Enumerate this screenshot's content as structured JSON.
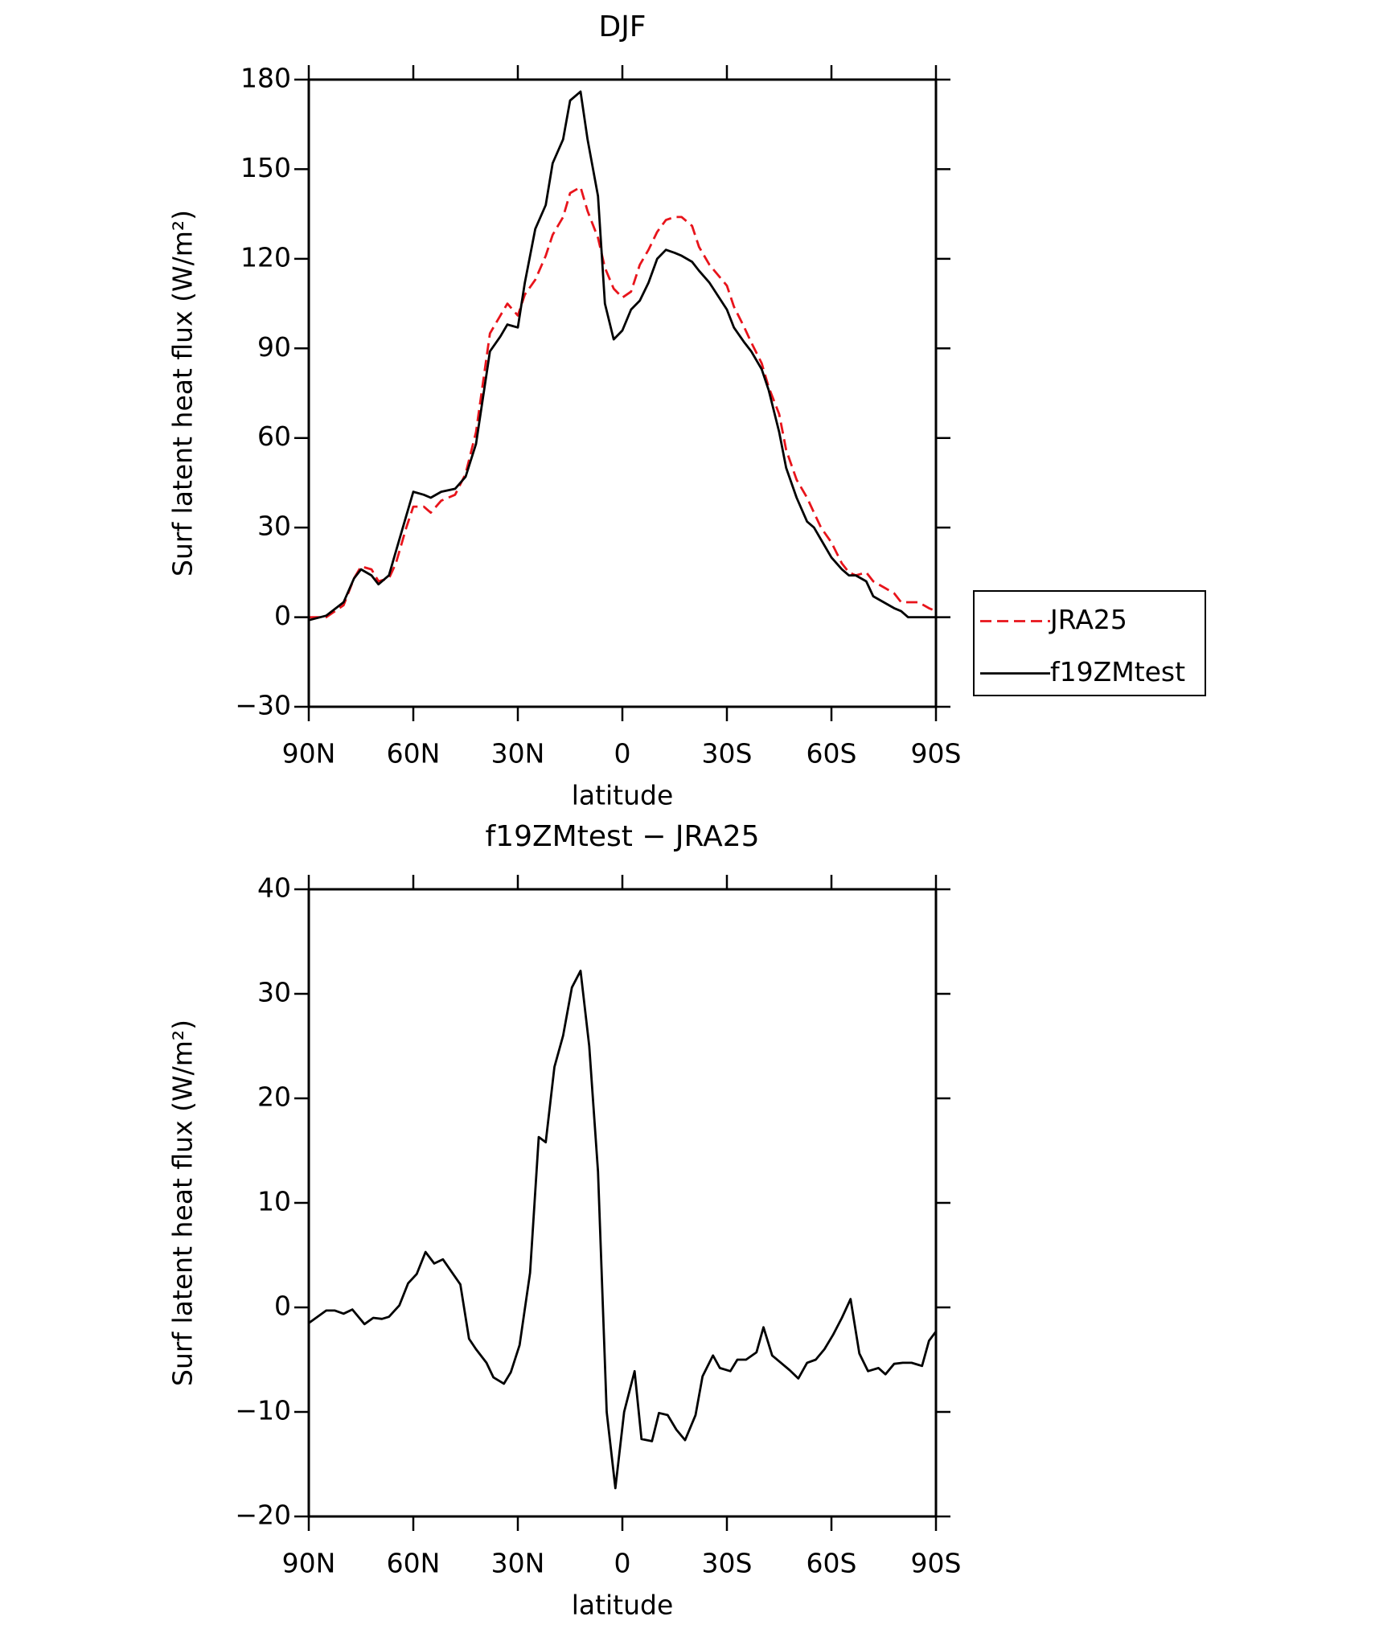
{
  "chart_data": [
    {
      "type": "line",
      "title": "DJF",
      "xlabel": "latitude",
      "ylabel": "Surf latent heat flux (W/m²)",
      "x": [
        90,
        85,
        80,
        77,
        75,
        72,
        70,
        67,
        65,
        62,
        60,
        57,
        55,
        52,
        48,
        45,
        42,
        38,
        35,
        33,
        30,
        28,
        25,
        22,
        20,
        17,
        15,
        12,
        10,
        7,
        5,
        2.5,
        0,
        -2.5,
        -5,
        -7.5,
        -10,
        -12.5,
        -15,
        -17,
        -20,
        -22,
        -25,
        -30,
        -32,
        -35,
        -37,
        -40,
        -42,
        -45,
        -47,
        -50,
        -53,
        -55,
        -57,
        -60,
        -63,
        -65,
        -67,
        -70,
        -72,
        -75,
        -78,
        -80,
        -82,
        -85,
        -88,
        -90
      ],
      "series": [
        {
          "name": "JRA25",
          "color": "#e8141b",
          "dash": true,
          "values": [
            0,
            0,
            4,
            13,
            17,
            16,
            12,
            13,
            18,
            30,
            37,
            37,
            35,
            39,
            41,
            48,
            62,
            95,
            101,
            105,
            101,
            108,
            113,
            121,
            128,
            134,
            142,
            144,
            136,
            127,
            117,
            110,
            107,
            109,
            118,
            123,
            129,
            133,
            134,
            134,
            131,
            124,
            118,
            111,
            104,
            97,
            92,
            85,
            77,
            68,
            56,
            46,
            40,
            35,
            30,
            25,
            18,
            15,
            14,
            15,
            12,
            10,
            8,
            5,
            5,
            5,
            3,
            2
          ]
        },
        {
          "name": "f19ZMtest",
          "color": "#000000",
          "dash": false,
          "values": [
            -1,
            0.5,
            5,
            13,
            16,
            14,
            11,
            14,
            22,
            34,
            42,
            41,
            40,
            42,
            43,
            47,
            58,
            89,
            94,
            98,
            97,
            112,
            130,
            138,
            152,
            160,
            173,
            176,
            160,
            141,
            105,
            93,
            96,
            103,
            106,
            112,
            120,
            123,
            122,
            121,
            119,
            116,
            112,
            103,
            97,
            92,
            89,
            83,
            76,
            62,
            50,
            40,
            32,
            30,
            26,
            20,
            16,
            14,
            14,
            12,
            7,
            5,
            3,
            2,
            0,
            0,
            0,
            0
          ]
        }
      ],
      "xlim": [
        90,
        -90
      ],
      "xticks": [
        {
          "value": 90,
          "label": "90N"
        },
        {
          "value": 60,
          "label": "60N"
        },
        {
          "value": 30,
          "label": "30N"
        },
        0,
        {
          "value": -30,
          "label": "30S"
        },
        {
          "value": -60,
          "label": "60S"
        },
        {
          "value": -90,
          "label": "90S"
        }
      ],
      "ylim": [
        -30,
        180
      ],
      "yticks": [
        {
          "value": -30,
          "label": "−30"
        },
        0,
        30,
        60,
        90,
        120,
        150,
        180
      ],
      "legend": "right"
    },
    {
      "type": "line",
      "title": "f19ZMtest − JRA25",
      "xlabel": "latitude",
      "ylabel": "Surf latent heat flux (W/m²)",
      "x": [
        90,
        85,
        82.5,
        80,
        77.5,
        74,
        71.5,
        69,
        67,
        64,
        61.5,
        59,
        56.5,
        54,
        51.5,
        46.5,
        44,
        42,
        39,
        37,
        34,
        32,
        29.5,
        26.5,
        24,
        22,
        19.5,
        17,
        14.5,
        12,
        9.5,
        7,
        4.5,
        2,
        -0.5,
        -3.5,
        -5.5,
        -8.5,
        -10.5,
        -13,
        -15.5,
        -18,
        -21,
        -23,
        -26,
        -28,
        -31,
        -33,
        -35.5,
        -38.5,
        -40.5,
        -43,
        -45.5,
        -48,
        -50.5,
        -53,
        -55.5,
        -58,
        -60.5,
        -63,
        -65.5,
        -68,
        -70.5,
        -73.5,
        -75.5,
        -78,
        -80.5,
        -83,
        -86,
        -88,
        -90
      ],
      "series": [
        {
          "name": "f19ZMtest − JRA25",
          "color": "#000000",
          "dash": false,
          "values": [
            -1.5,
            -0.3,
            -0.3,
            -0.6,
            -0.2,
            -1.6,
            -1,
            -1.1,
            -0.9,
            0.2,
            2.3,
            3.2,
            5.3,
            4.2,
            4.6,
            2.2,
            -3,
            -4,
            -5.3,
            -6.7,
            -7.3,
            -6.2,
            -3.6,
            3.3,
            16.3,
            15.8,
            23,
            26,
            30.6,
            32.2,
            25,
            13,
            -10,
            -17.3,
            -10,
            -6.1,
            -12.6,
            -12.8,
            -10.1,
            -10.3,
            -11.7,
            -12.7,
            -10.3,
            -6.6,
            -4.6,
            -5.8,
            -6.1,
            -5,
            -5,
            -4.3,
            -1.9,
            -4.6,
            -5.3,
            -6,
            -6.8,
            -5.3,
            -5,
            -4,
            -2.6,
            -1,
            0.8,
            -4.4,
            -6.1,
            -5.8,
            -6.4,
            -5.4,
            -5.3,
            -5.3,
            -5.6,
            -3.2,
            -2.3
          ]
        }
      ],
      "xlim": [
        90,
        -90
      ],
      "xticks": [
        {
          "value": 90,
          "label": "90N"
        },
        {
          "value": 60,
          "label": "60N"
        },
        {
          "value": 30,
          "label": "30N"
        },
        0,
        {
          "value": -30,
          "label": "30S"
        },
        {
          "value": -60,
          "label": "60S"
        },
        {
          "value": -90,
          "label": "90S"
        }
      ],
      "ylim": [
        -20,
        40
      ],
      "yticks": [
        {
          "value": -20,
          "label": "−20"
        },
        {
          "value": -10,
          "label": "−10"
        },
        0,
        10,
        20,
        30,
        40
      ]
    }
  ]
}
